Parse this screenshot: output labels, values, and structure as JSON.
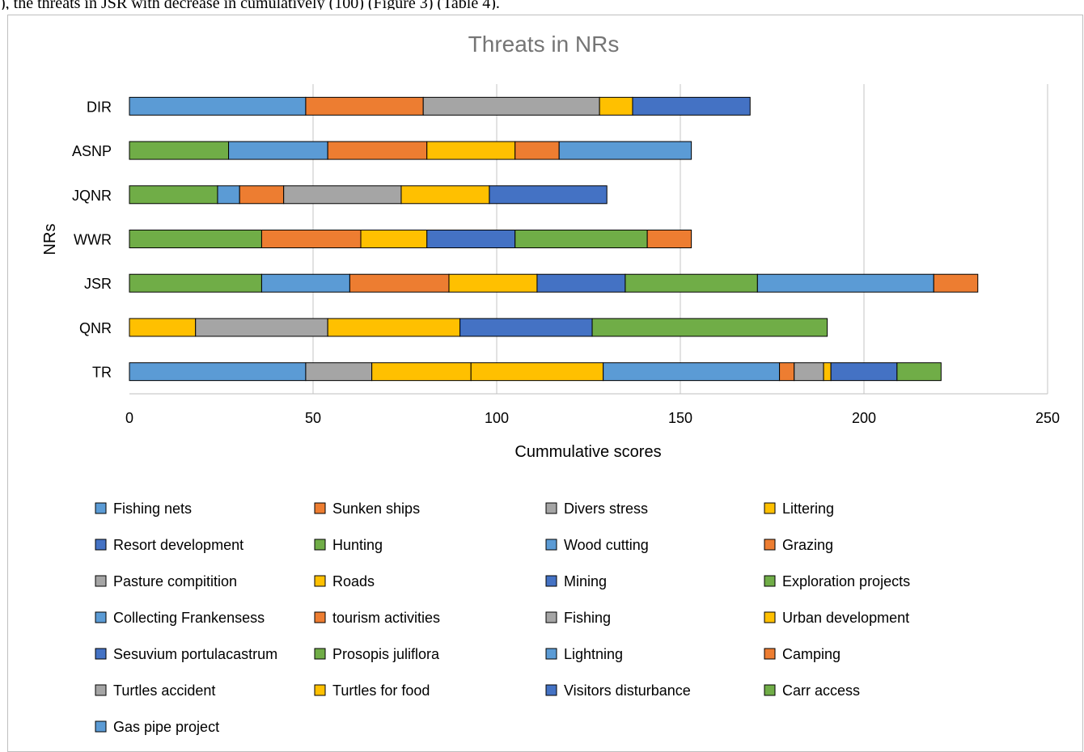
{
  "page": {
    "caption_fragment": "), the threats in JSR with decrease in cumulatively (100) (Figure 3) (Table 4)."
  },
  "chart_data": {
    "type": "bar",
    "orientation": "horizontal",
    "stacked": true,
    "title": "Threats in NRs",
    "xlabel": "Cummulative scores",
    "ylabel": "NRs",
    "xlim": [
      0,
      250
    ],
    "xticks": [
      0,
      50,
      100,
      150,
      200,
      250
    ],
    "grid": true,
    "legend_position": "bottom",
    "categories": [
      "TR",
      "QNR",
      "JSR",
      "WWR",
      "JQNR",
      "ASNP",
      "DIR"
    ],
    "series": [
      {
        "name": "Fishing nets",
        "color": "#5b9bd5",
        "values": [
          48,
          0,
          0,
          0,
          0,
          0,
          48
        ]
      },
      {
        "name": "Sunken ships",
        "color": "#ed7d31",
        "values": [
          0,
          0,
          0,
          0,
          0,
          0,
          32
        ]
      },
      {
        "name": "Divers stress",
        "color": "#a5a5a5",
        "values": [
          18,
          0,
          0,
          0,
          0,
          0,
          48
        ]
      },
      {
        "name": "Littering",
        "color": "#ffc000",
        "values": [
          27,
          18,
          0,
          0,
          0,
          0,
          9
        ]
      },
      {
        "name": "Resort development",
        "color": "#4472c4",
        "values": [
          0,
          0,
          0,
          0,
          0,
          0,
          32
        ]
      },
      {
        "name": "Hunting",
        "color": "#70ad47",
        "values": [
          0,
          0,
          36,
          36,
          24,
          27,
          0
        ]
      },
      {
        "name": "Wood cutting",
        "color": "#5b9bd5",
        "values": [
          0,
          0,
          24,
          0,
          6,
          27,
          0
        ]
      },
      {
        "name": "Grazing",
        "color": "#ed7d31",
        "values": [
          0,
          0,
          27,
          27,
          12,
          27,
          0
        ]
      },
      {
        "name": "Pasture compitition",
        "color": "#a5a5a5",
        "values": [
          0,
          36,
          0,
          0,
          32,
          0,
          0
        ]
      },
      {
        "name": "Roads",
        "color": "#ffc000",
        "values": [
          36,
          36,
          24,
          18,
          24,
          24,
          0
        ]
      },
      {
        "name": "Mining",
        "color": "#4472c4",
        "values": [
          0,
          36,
          24,
          24,
          32,
          0,
          0
        ]
      },
      {
        "name": "Exploration projects",
        "color": "#70ad47",
        "values": [
          0,
          64,
          36,
          36,
          0,
          0,
          0
        ]
      },
      {
        "name": "Collecting Frankensess",
        "color": "#5b9bd5",
        "values": [
          0,
          0,
          48,
          0,
          0,
          0,
          0
        ]
      },
      {
        "name": "tourism activities",
        "color": "#ed7d31",
        "values": [
          0,
          0,
          12,
          12,
          0,
          12,
          0
        ]
      },
      {
        "name": "Fishing",
        "color": "#a5a5a5",
        "values": [
          0,
          0,
          0,
          0,
          0,
          0,
          0
        ]
      },
      {
        "name": "Urban development",
        "color": "#ffc000",
        "values": [
          0,
          0,
          0,
          0,
          0,
          0,
          0
        ]
      },
      {
        "name": "Sesuvium portulacastrum",
        "color": "#4472c4",
        "values": [
          0,
          0,
          0,
          0,
          0,
          0,
          0
        ]
      },
      {
        "name": "Prosopis juliflora",
        "color": "#70ad47",
        "values": [
          0,
          0,
          0,
          0,
          0,
          0,
          0
        ]
      },
      {
        "name": "Lightning",
        "color": "#5b9bd5",
        "values": [
          48,
          0,
          0,
          0,
          0,
          36,
          0
        ]
      },
      {
        "name": "Camping",
        "color": "#ed7d31",
        "values": [
          4,
          0,
          0,
          0,
          0,
          0,
          0
        ]
      },
      {
        "name": "Turtles accident",
        "color": "#a5a5a5",
        "values": [
          8,
          0,
          0,
          0,
          0,
          0,
          0
        ]
      },
      {
        "name": "Turtles for food",
        "color": "#ffc000",
        "values": [
          2,
          0,
          0,
          0,
          0,
          0,
          0
        ]
      },
      {
        "name": "Visitors disturbance",
        "color": "#4472c4",
        "values": [
          18,
          0,
          0,
          0,
          0,
          0,
          0
        ]
      },
      {
        "name": "Carr access",
        "color": "#70ad47",
        "values": [
          12,
          0,
          0,
          0,
          0,
          0,
          0
        ]
      },
      {
        "name": "Gas pipe project",
        "color": "#5b9bd5",
        "values": [
          0,
          0,
          0,
          0,
          0,
          0,
          0
        ]
      }
    ]
  }
}
